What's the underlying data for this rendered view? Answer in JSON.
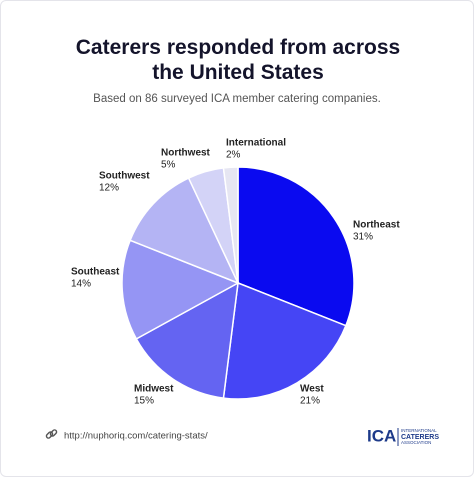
{
  "chart_data": {
    "type": "pie",
    "title": "Caterers responded from across the United States",
    "subtitle": "Based on 86 surveyed ICA member catering companies.",
    "categories": [
      "Northeast",
      "West",
      "Midwest",
      "Southeast",
      "Southwest",
      "Northwest",
      "International"
    ],
    "values": [
      31,
      21,
      15,
      14,
      12,
      5,
      2
    ],
    "value_labels": [
      "31%",
      "21%",
      "15%",
      "14%",
      "12%",
      "5%",
      "2%"
    ],
    "colors": [
      "#0a0af0",
      "#4545f5",
      "#6464f2",
      "#9595f4",
      "#b4b4f4",
      "#d3d3f7",
      "#e6e6f2"
    ]
  },
  "footer": {
    "url": "http://nuphoriq.com/catering-stats/",
    "logo": "ICA",
    "logo_text": [
      "INTERNATIONAL",
      "CATERERS",
      "ASSOCIATION"
    ]
  }
}
